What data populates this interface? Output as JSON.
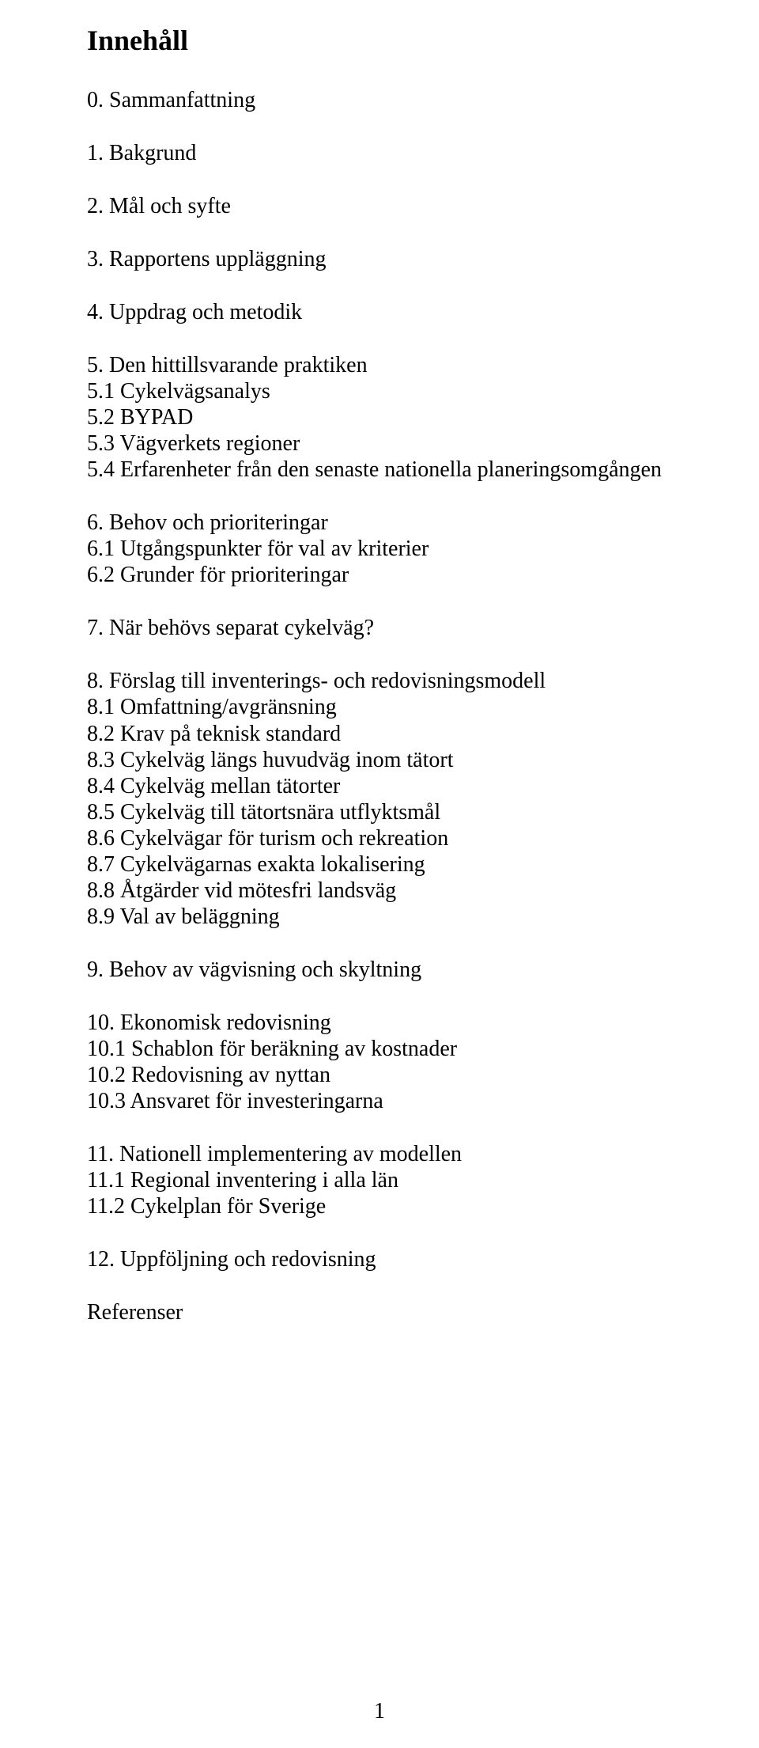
{
  "title": "Innehåll",
  "groups": [
    {
      "lines": [
        "0.  Sammanfattning"
      ]
    },
    {
      "lines": [
        "1.  Bakgrund"
      ]
    },
    {
      "lines": [
        "2.  Mål och syfte"
      ]
    },
    {
      "lines": [
        "3.  Rapportens uppläggning"
      ]
    },
    {
      "lines": [
        "4.  Uppdrag och metodik"
      ]
    },
    {
      "lines": [
        "5.  Den hittillsvarande praktiken",
        "5.1 Cykelvägsanalys",
        "5.2 BYPAD",
        "5.3 Vägverkets regioner",
        "5.4 Erfarenheter från den senaste nationella planeringsomgången"
      ]
    },
    {
      "lines": [
        "6.  Behov och prioriteringar",
        "6.1 Utgångspunkter för val av kriterier",
        "6.2 Grunder för prioriteringar"
      ]
    },
    {
      "lines": [
        "7.  När behövs separat cykelväg?"
      ]
    },
    {
      "lines": [
        "8.  Förslag till inventerings- och redovisningsmodell",
        "8.1 Omfattning/avgränsning",
        "8.2 Krav på teknisk standard",
        "8.3 Cykelväg längs huvudväg inom tätort",
        "8.4 Cykelväg mellan tätorter",
        "8.5 Cykelväg till tätortsnära utflyktsmål",
        "8.6 Cykelvägar för turism och rekreation",
        "8.7 Cykelvägarnas exakta lokalisering",
        "8.8 Åtgärder vid mötesfri landsväg",
        "8.9 Val av beläggning"
      ]
    },
    {
      "lines": [
        "9.  Behov av vägvisning och skyltning"
      ]
    },
    {
      "lines": [
        "10. Ekonomisk redovisning",
        "10.1 Schablon för beräkning av kostnader",
        "10.2 Redovisning av nyttan",
        "10.3 Ansvaret för investeringarna"
      ]
    },
    {
      "lines": [
        "11. Nationell implementering av modellen",
        "11.1 Regional inventering i alla län",
        "11.2 Cykelplan för Sverige"
      ]
    },
    {
      "lines": [
        "12. Uppföljning och redovisning"
      ]
    },
    {
      "lines": [
        "Referenser"
      ]
    }
  ],
  "pageNumber": "1"
}
